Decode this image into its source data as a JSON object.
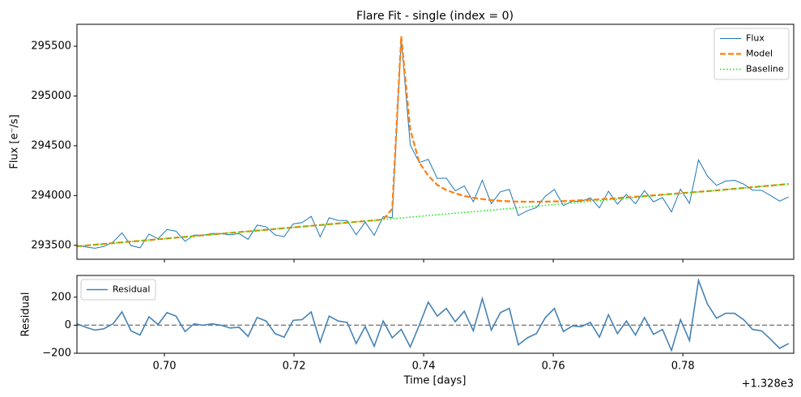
{
  "chart_data": [
    {
      "type": "line",
      "title": "Flare Fit - single (index = 0)",
      "ylabel": "Flux [e⁻/s]",
      "x": [
        0.6865,
        0.68789,
        0.68928,
        0.69067,
        0.69206,
        0.69345,
        0.69484,
        0.69623,
        0.69762,
        0.69901,
        0.7004,
        0.70179,
        0.70318,
        0.70457,
        0.70596,
        0.70735,
        0.70874,
        0.71013,
        0.71152,
        0.71291,
        0.7143,
        0.71569,
        0.71708,
        0.71847,
        0.71986,
        0.72125,
        0.72264,
        0.72403,
        0.72542,
        0.72681,
        0.7282,
        0.72959,
        0.73098,
        0.73237,
        0.73376,
        0.73515,
        0.73654,
        0.73793,
        0.73932,
        0.74071,
        0.7421,
        0.74349,
        0.74488,
        0.74627,
        0.74766,
        0.74905,
        0.75044,
        0.75183,
        0.75322,
        0.75461,
        0.756,
        0.75739,
        0.75878,
        0.76017,
        0.76156,
        0.76295,
        0.76434,
        0.76573,
        0.76712,
        0.76851,
        0.7699,
        0.77129,
        0.77268,
        0.77407,
        0.77546,
        0.77685,
        0.77824,
        0.77963,
        0.78102,
        0.78241,
        0.7838,
        0.78519,
        0.78658,
        0.78797,
        0.78936,
        0.79075,
        0.79214,
        0.79353,
        0.79492,
        0.79631
      ],
      "series": [
        {
          "name": "Flux",
          "color": "#1f77b4",
          "linestyle": "solid",
          "width": 1,
          "values": [
            293500,
            293483,
            293471,
            293489,
            293532,
            293625,
            293498,
            293475,
            293613,
            293566,
            293659,
            293642,
            293540,
            293603,
            293601,
            293619,
            293617,
            293605,
            293618,
            293560,
            293703,
            293686,
            293604,
            293587,
            293715,
            293728,
            293791,
            293584,
            293777,
            293750,
            293748,
            293606,
            293733,
            293601,
            293789,
            293777,
            295570,
            294508,
            294331,
            294364,
            294172,
            294175,
            294048,
            294096,
            293938,
            294154,
            293919,
            294037,
            294062,
            293799,
            293848,
            293878,
            293994,
            294061,
            293899,
            293943,
            293943,
            293977,
            293877,
            294043,
            293914,
            294011,
            293918,
            294050,
            293937,
            293979,
            293836,
            294064,
            293921,
            294358,
            294194,
            294102,
            294145,
            294153,
            294116,
            294054,
            294052,
            294000,
            293943,
            293986
          ]
        },
        {
          "name": "Model",
          "color": "#ff7f0e",
          "linestyle": "dashed",
          "width": 2.2,
          "values": [
            293490,
            293498,
            293506,
            293514,
            293522,
            293530,
            293538,
            293545,
            293553,
            293561,
            293569,
            293577,
            293585,
            293593,
            293601,
            293609,
            293617,
            293625,
            293633,
            293640,
            293648,
            293656,
            293664,
            293672,
            293680,
            293688,
            293696,
            293704,
            293712,
            293720,
            293728,
            293736,
            293743,
            293751,
            293759,
            293867,
            295600,
            294663,
            294331,
            294199,
            294107,
            294055,
            294023,
            293996,
            293978,
            293964,
            293954,
            293947,
            293942,
            293939,
            293938,
            293938,
            293939,
            293941,
            293944,
            293948,
            293953,
            293957,
            293962,
            293968,
            293974,
            293981,
            293988,
            293995,
            294002,
            294009,
            294016,
            294024,
            294031,
            294038,
            294044,
            294052,
            294060,
            294068,
            294076,
            294084,
            294092,
            294100,
            294108,
            294116
          ]
        },
        {
          "name": "Baseline",
          "color": "#00ee00",
          "linestyle": "dotted",
          "width": 1.5,
          "values": [
            293490,
            293498,
            293506,
            293514,
            293522,
            293530,
            293538,
            293545,
            293553,
            293561,
            293569,
            293577,
            293585,
            293593,
            293601,
            293609,
            293617,
            293625,
            293633,
            293640,
            293648,
            293656,
            293664,
            293672,
            293680,
            293688,
            293696,
            293704,
            293712,
            293720,
            293728,
            293736,
            293743,
            293751,
            293759,
            293767,
            293775,
            293783,
            293791,
            293799,
            293807,
            293815,
            293823,
            293831,
            293838,
            293846,
            293854,
            293862,
            293870,
            293878,
            293886,
            293894,
            293902,
            293910,
            293918,
            293926,
            293934,
            293941,
            293949,
            293957,
            293965,
            293973,
            293981,
            293989,
            293997,
            294005,
            294013,
            294021,
            294029,
            294036,
            294044,
            294052,
            294060,
            294068,
            294076,
            294084,
            294092,
            294100,
            294108,
            294116
          ]
        }
      ],
      "xlim": [
        0.6865,
        0.7971
      ],
      "ylim": [
        293360,
        295720
      ],
      "yticks": [
        293500,
        294000,
        294500,
        295000,
        295500
      ],
      "legend": "upper right"
    },
    {
      "type": "line",
      "ylabel": "Residual",
      "xlabel": "Time [days]",
      "x_offset_label": "+1.328e3",
      "x": [
        0.6865,
        0.68789,
        0.68928,
        0.69067,
        0.69206,
        0.69345,
        0.69484,
        0.69623,
        0.69762,
        0.69901,
        0.7004,
        0.70179,
        0.70318,
        0.70457,
        0.70596,
        0.70735,
        0.70874,
        0.71013,
        0.71152,
        0.71291,
        0.7143,
        0.71569,
        0.71708,
        0.71847,
        0.71986,
        0.72125,
        0.72264,
        0.72403,
        0.72542,
        0.72681,
        0.7282,
        0.72959,
        0.73098,
        0.73237,
        0.73376,
        0.73515,
        0.73654,
        0.73793,
        0.73932,
        0.74071,
        0.7421,
        0.74349,
        0.74488,
        0.74627,
        0.74766,
        0.74905,
        0.75044,
        0.75183,
        0.75322,
        0.75461,
        0.756,
        0.75739,
        0.75878,
        0.76017,
        0.76156,
        0.76295,
        0.76434,
        0.76573,
        0.76712,
        0.76851,
        0.7699,
        0.77129,
        0.77268,
        0.77407,
        0.77546,
        0.77685,
        0.77824,
        0.77963,
        0.78102,
        0.78241,
        0.7838,
        0.78519,
        0.78658,
        0.78797,
        0.78936,
        0.79075,
        0.79214,
        0.79353,
        0.79492,
        0.79631
      ],
      "series": [
        {
          "name": "Residual",
          "color": "#4682b4",
          "linestyle": "solid",
          "width": 1.6,
          "values": [
            10,
            -15,
            -35,
            -25,
            10,
            95,
            -40,
            -70,
            60,
            5,
            90,
            65,
            -45,
            10,
            0,
            10,
            0,
            -20,
            -15,
            -80,
            55,
            30,
            -60,
            -85,
            35,
            40,
            95,
            -120,
            65,
            30,
            20,
            -130,
            -10,
            -150,
            30,
            -90,
            -30,
            -155,
            0,
            165,
            65,
            120,
            25,
            100,
            -40,
            190,
            -35,
            90,
            120,
            -140,
            -90,
            -60,
            55,
            120,
            -45,
            -5,
            -10,
            20,
            -85,
            75,
            -60,
            30,
            -70,
            55,
            -65,
            -30,
            -180,
            40,
            -110,
            320,
            150,
            50,
            85,
            85,
            40,
            -30,
            -40,
            -100,
            -165,
            -130
          ]
        }
      ],
      "hline": 0,
      "xlim": [
        0.6865,
        0.7971
      ],
      "ylim": [
        -200,
        355
      ],
      "xticks": [
        {
          "value": 0.7,
          "label": "0.70"
        },
        0.72,
        0.74,
        0.76,
        0.78
      ],
      "yticks": [
        {
          "value": -200,
          "label": "−200"
        },
        0,
        200
      ],
      "legend": "upper left"
    }
  ]
}
